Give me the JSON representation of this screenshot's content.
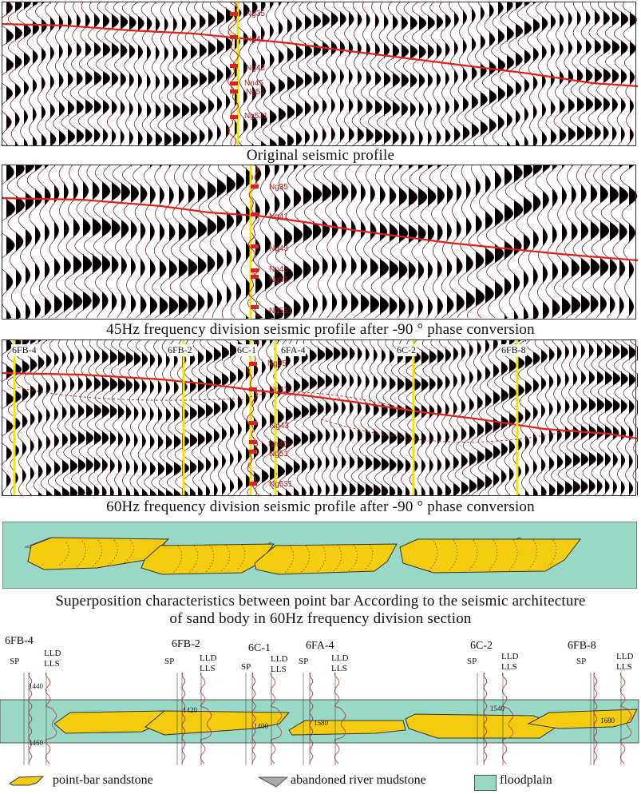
{
  "captions": {
    "p1": "Original seismic profile",
    "p2": "45Hz frequency division seismic profile after -90 ° phase conversion",
    "p3": "60Hz frequency division seismic profile after -90 ° phase conversion",
    "p4_line1": "Superposition characteristics between point bar According to the seismic architecture",
    "p4_line2": "of sand body in 60Hz frequency division section"
  },
  "horizons": [
    "Ng35",
    "Ng41",
    "Ng43",
    "Nn45",
    "Ng51",
    "Ng531"
  ],
  "wells60": [
    "6FB-4",
    "6FB-2",
    "6C-1",
    "6FA-4",
    "6C-2",
    "6FB-8"
  ],
  "wells": [
    {
      "name": "6FB-4",
      "sp": "SP",
      "lld": "LLD",
      "lls": "LLS",
      "d1": "1440",
      "d2": "1460"
    },
    {
      "name": "6FB-2",
      "sp": "SP",
      "lld": "LLD",
      "lls": "LLS",
      "d1": "1420"
    },
    {
      "name": "6C-1",
      "sp": "SP",
      "lld": "LLD",
      "lls": "LLS",
      "d1": "1400"
    },
    {
      "name": "6FA-4",
      "sp": "SP",
      "lld": "LLD",
      "lls": "LLS",
      "d1": "1580"
    },
    {
      "name": "6C-2",
      "sp": "SP",
      "lld": "LLD",
      "lls": "LLS",
      "d1": "1540"
    },
    {
      "name": "6FB-8",
      "sp": "SP",
      "lld": "LLD",
      "lls": "LLS",
      "d1": "1680"
    }
  ],
  "legend": {
    "sand": "point-bar sandstone",
    "mud": "abandoned river mudstone",
    "flood": "floodplain"
  },
  "colors": {
    "sand": "#f3cc10",
    "floodplain": "#9ad8c6",
    "mudstone": "#a9a9a9",
    "horizon": "#e32016",
    "wellbore": "#f2e600",
    "wavelet": "#000000"
  }
}
